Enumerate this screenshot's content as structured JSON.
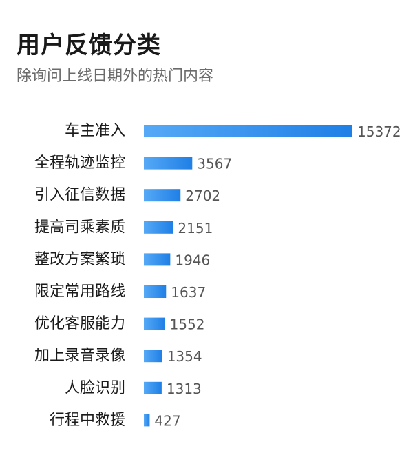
{
  "header": {
    "title": "用户反馈分类",
    "subtitle": "除询问上线日期外的热门内容"
  },
  "colors": {
    "bar_start": "#56a9f6",
    "bar_end": "#1f7fe6"
  },
  "chart_data": {
    "type": "bar",
    "orientation": "horizontal",
    "title": "用户反馈分类",
    "subtitle": "除询问上线日期外的热门内容",
    "categories": [
      "车主准入",
      "全程轨迹监控",
      "引入征信数据",
      "提高司乘素质",
      "整改方案繁琐",
      "限定常用路线",
      "优化客服能力",
      "加上录音录像",
      "人脸识别",
      "行程中救援"
    ],
    "values": [
      15372,
      3567,
      2702,
      2151,
      1946,
      1637,
      1552,
      1354,
      1313,
      427
    ],
    "xlim": [
      0,
      15372
    ],
    "grid": false,
    "legend": "none"
  }
}
